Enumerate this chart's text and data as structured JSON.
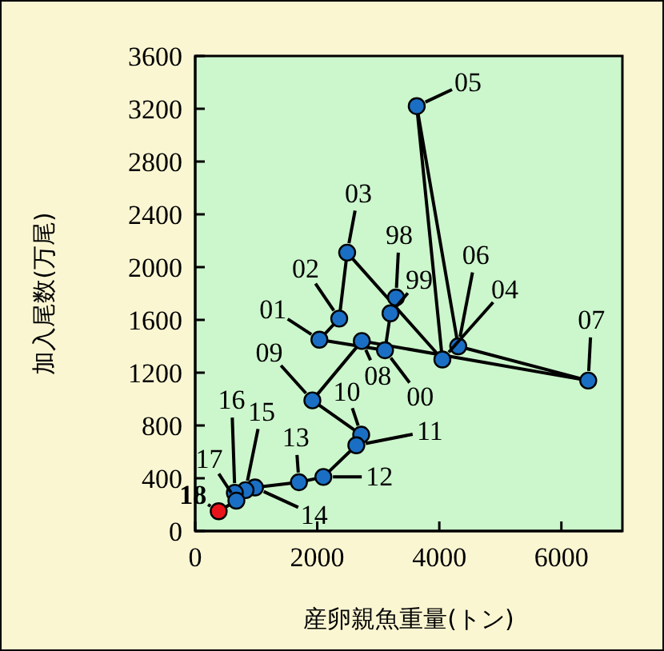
{
  "chart_data": {
    "type": "line",
    "xlabel": "産卵親魚重量(トン)",
    "ylabel": "加入尾数(万尾)",
    "xlim": [
      0,
      7000
    ],
    "xticks": [
      0,
      2000,
      4000,
      6000
    ],
    "ylim": [
      0,
      3600
    ],
    "yticks": [
      0,
      400,
      800,
      1200,
      1600,
      2000,
      2400,
      2800,
      3200,
      3600
    ],
    "legend": false,
    "marker": "circle",
    "line_style": "solid",
    "series": [
      {
        "color": "#000000",
        "x": [
          3290,
          3200,
          3110,
          2035,
          2360,
          2490,
          4050,
          3630,
          4310,
          6440,
          2730,
          1920,
          2720,
          2640,
          2100,
          1700,
          980,
          825,
          650,
          675,
          385
        ],
        "values": [
          1770,
          1650,
          1370,
          1450,
          1610,
          2110,
          1300,
          3220,
          1400,
          1140,
          1440,
          990,
          730,
          650,
          410,
          370,
          330,
          310,
          290,
          230,
          150
        ],
        "colors": [
          "#1a6fc4",
          "#1a6fc4",
          "#1a6fc4",
          "#1a6fc4",
          "#1a6fc4",
          "#1a6fc4",
          "#1a6fc4",
          "#1a6fc4",
          "#1a6fc4",
          "#1a6fc4",
          "#1a6fc4",
          "#1a6fc4",
          "#1a6fc4",
          "#1a6fc4",
          "#1a6fc4",
          "#1a6fc4",
          "#1a6fc4",
          "#1a6fc4",
          "#1a6fc4",
          "#1a6fc4",
          "#e8141a"
        ]
      }
    ],
    "annotations": [
      {
        "text": "98",
        "x": 3290,
        "y": 1770
      },
      {
        "text": "99",
        "x": 3200,
        "y": 1650
      },
      {
        "text": "00",
        "x": 3110,
        "y": 1370
      },
      {
        "text": "01",
        "x": 2035,
        "y": 1450
      },
      {
        "text": "02",
        "x": 2360,
        "y": 1610
      },
      {
        "text": "03",
        "x": 2490,
        "y": 2110
      },
      {
        "text": "04",
        "x": 4050,
        "y": 1300
      },
      {
        "text": "05",
        "x": 3630,
        "y": 3220
      },
      {
        "text": "06",
        "x": 4310,
        "y": 1400
      },
      {
        "text": "07",
        "x": 6440,
        "y": 1140
      },
      {
        "text": "08",
        "x": 2730,
        "y": 1440
      },
      {
        "text": "09",
        "x": 1920,
        "y": 990
      },
      {
        "text": "10",
        "x": 2720,
        "y": 730
      },
      {
        "text": "11",
        "x": 2640,
        "y": 650
      },
      {
        "text": "12",
        "x": 2100,
        "y": 410
      },
      {
        "text": "13",
        "x": 1700,
        "y": 370
      },
      {
        "text": "14",
        "x": 980,
        "y": 330
      },
      {
        "text": "15",
        "x": 825,
        "y": 310
      },
      {
        "text": "16",
        "x": 650,
        "y": 290
      },
      {
        "text": "17",
        "x": 675,
        "y": 230
      },
      {
        "text": "18",
        "x": 385,
        "y": 150
      }
    ]
  }
}
